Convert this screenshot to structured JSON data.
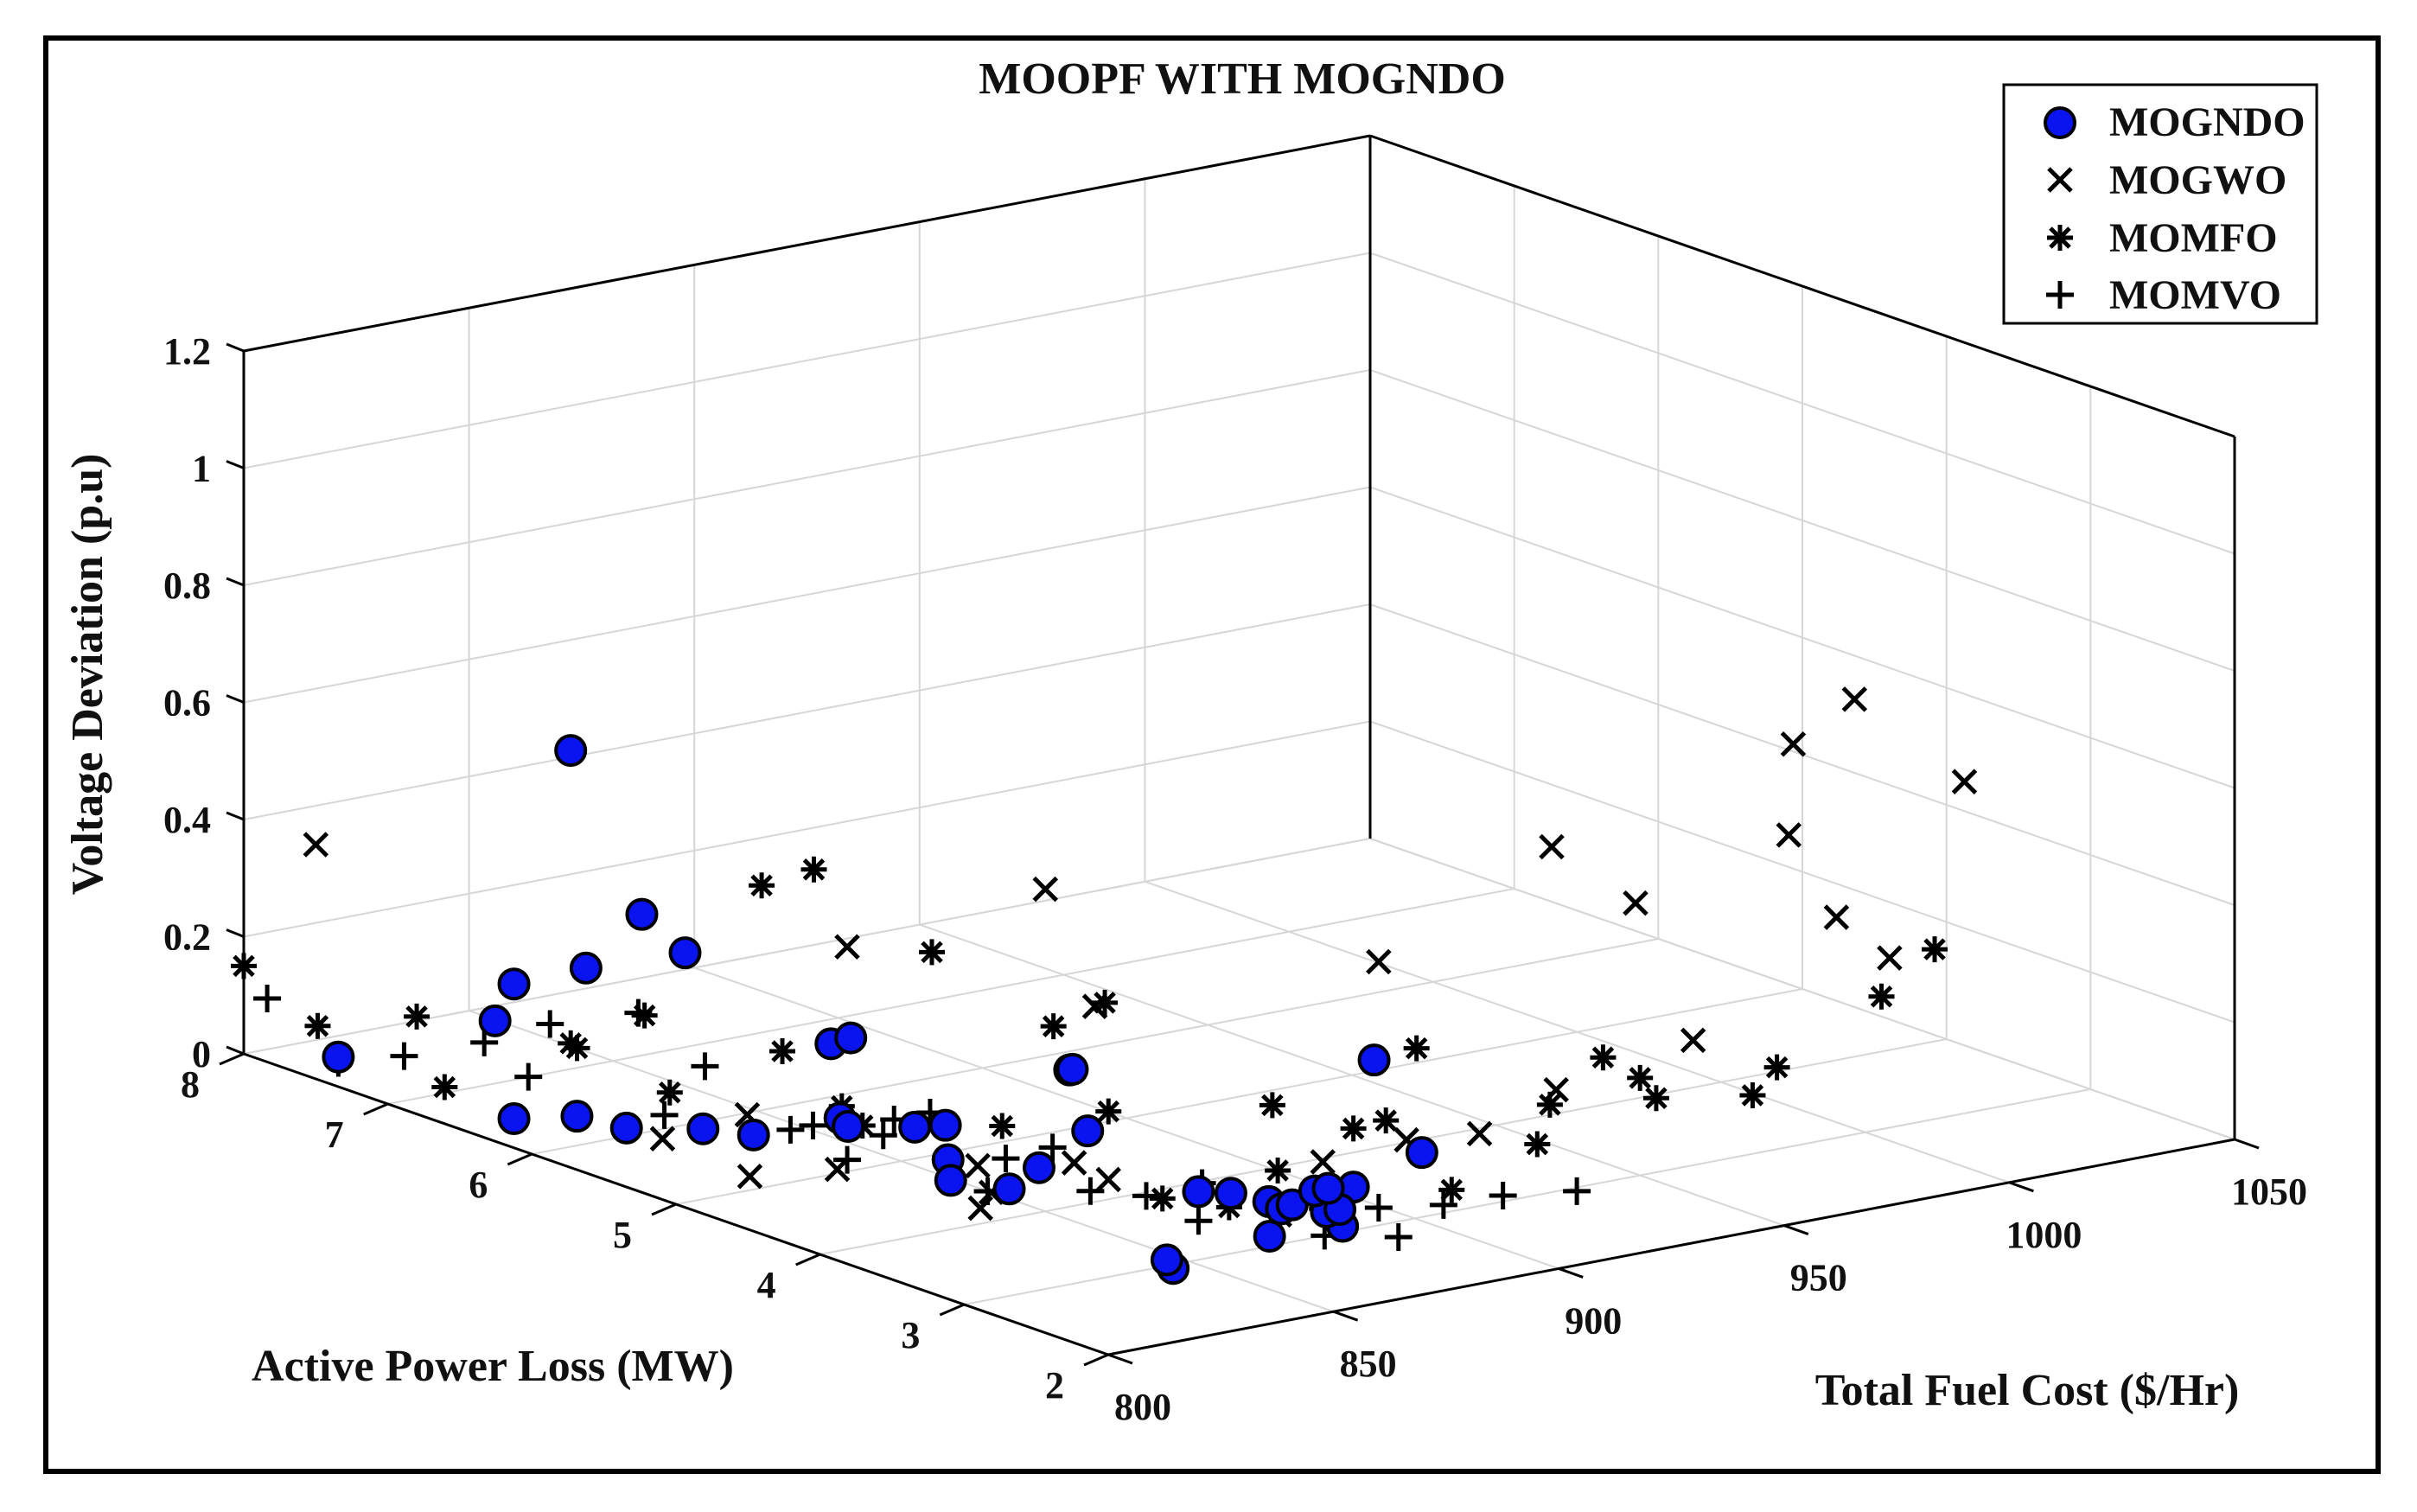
{
  "chart_data": {
    "type": "scatter",
    "projection": "3d",
    "title": "MOOPF WITH MOGNDO",
    "xlabel": "Total Fuel Cost ($/Hr)",
    "ylabel": "Active Power Loss (MW)",
    "zlabel": "Voltage Deviation (p.u)",
    "xlim": [
      800,
      1050
    ],
    "ylim": [
      2,
      8
    ],
    "zlim": [
      0,
      1.2
    ],
    "x_ticks": [
      "800",
      "850",
      "900",
      "950",
      "1000",
      "1050"
    ],
    "y_ticks": [
      "2",
      "3",
      "4",
      "5",
      "6",
      "7",
      "8"
    ],
    "z_ticks": [
      "0",
      "0.2",
      "0.4",
      "0.6",
      "0.8",
      "1",
      "1.2"
    ],
    "grid": true,
    "legend_position": "top-right",
    "series": [
      {
        "name": "MOGNDO",
        "marker": "filled-circle",
        "color": "#0a14f0",
        "points": [
          [
            810,
            6,
            0.05
          ],
          [
            812,
            6,
            0.3
          ],
          [
            815,
            6.2,
            0.65
          ],
          [
            812,
            6.5,
            0.23
          ],
          [
            811,
            6.6,
            0.16
          ],
          [
            818,
            5.5,
            0.36
          ],
          [
            818,
            5.8,
            0.4
          ],
          [
            828,
            4.8,
            0.25
          ],
          [
            826,
            4.6,
            0.28
          ],
          [
            805,
            5.5,
            0.08
          ],
          [
            806,
            5,
            0.12
          ],
          [
            830,
            4.8,
            0.12
          ],
          [
            837,
            4.5,
            0.12
          ],
          [
            847,
            4.6,
            0.1
          ],
          [
            838,
            4.3,
            0.08
          ],
          [
            849,
            3.8,
            0.26
          ],
          [
            840,
            3.5,
            0.3
          ],
          [
            842,
            4,
            0.05
          ],
          [
            853,
            3.8,
            0.15
          ],
          [
            855,
            4.2,
            0.05
          ],
          [
            840,
            2.8,
            0.02
          ],
          [
            845,
            3,
            0.01
          ],
          [
            855,
            2.6,
            0.07
          ],
          [
            875,
            2.5,
            0.35
          ],
          [
            868,
            3.5,
            0.05
          ],
          [
            872,
            3.4,
            0.05
          ],
          [
            874,
            3.2,
            0.05
          ],
          [
            880,
            3.3,
            0.02
          ],
          [
            880,
            2.8,
            0.1
          ],
          [
            892,
            2.7,
            0.15
          ],
          [
            876,
            3.1,
            0.05
          ],
          [
            884,
            3,
            0.01
          ],
          [
            890,
            3.3,
            0.0
          ],
          [
            893,
            3.3,
            0.0
          ],
          [
            897,
            3.6,
            0.0
          ],
          [
            900,
            3.6,
            0.0
          ],
          [
            813,
            3.5,
            0.15
          ],
          [
            835,
            4.9,
            0.09
          ],
          [
            830,
            5.4,
            0.04
          ],
          [
            805,
            7.5,
            0.03
          ],
          [
            812,
            6.5,
            0.0
          ]
        ]
      },
      {
        "name": "MOGWO",
        "marker": "x",
        "color": "#000000",
        "points": [
          [
            800,
            7.5,
            0.4
          ],
          [
            822,
            4.5,
            0.45
          ],
          [
            850,
            4,
            0.55
          ],
          [
            845,
            3.5,
            0.4
          ],
          [
            892,
            3,
            0.45
          ],
          [
            940,
            3.3,
            0.55
          ],
          [
            1000,
            3.5,
            0.62
          ],
          [
            1020,
            3.7,
            0.65
          ],
          [
            1038,
            3.5,
            0.5
          ],
          [
            1015,
            4,
            0.4
          ],
          [
            1015,
            3.3,
            0.25
          ],
          [
            925,
            2.8,
            0.2
          ],
          [
            908,
            2.8,
            0.15
          ],
          [
            895,
            2.9,
            0.15
          ],
          [
            965,
            3.5,
            0.4
          ],
          [
            965,
            3.1,
            0.2
          ],
          [
            1000,
            3.2,
            0.35
          ],
          [
            835,
            4,
            0.1
          ],
          [
            838,
            4,
            0.05
          ],
          [
            848,
            3.5,
            0.1
          ],
          [
            870,
            3,
            0.05
          ],
          [
            886,
            3.2,
            0.1
          ],
          [
            850,
            3.8,
            0.1
          ],
          [
            842,
            4.2,
            0.0
          ],
          [
            823,
            4.6,
            0.06
          ],
          [
            813,
            5.5,
            0.05
          ],
          [
            835,
            5.6,
            0.05
          ],
          [
            810,
            4.8,
            0.05
          ]
        ]
      },
      {
        "name": "MOMFO",
        "marker": "asterisk",
        "color": "#000000",
        "points": [
          [
            800,
            8,
            0.15
          ],
          [
            810,
            7.8,
            0.05
          ],
          [
            816,
            7.3,
            0.1
          ],
          [
            826,
            6.5,
            0.1
          ],
          [
            835,
            5.5,
            0.45
          ],
          [
            837,
            5.2,
            0.5
          ],
          [
            844,
            4.6,
            0.4
          ],
          [
            855,
            4.1,
            0.3
          ],
          [
            860,
            3.9,
            0.35
          ],
          [
            878,
            3.3,
            0.2
          ],
          [
            900,
            3.2,
            0.15
          ],
          [
            910,
            3.3,
            0.25
          ],
          [
            930,
            3,
            0.15
          ],
          [
            945,
            3.1,
            0.2
          ],
          [
            960,
            3.2,
            0.1
          ],
          [
            975,
            3,
            0.1
          ],
          [
            990,
            3.3,
            0.1
          ],
          [
            1010,
            3.2,
            0.2
          ],
          [
            1025,
            3.3,
            0.25
          ],
          [
            880,
            2.8,
            0.2
          ],
          [
            876,
            3.2,
            0.1
          ],
          [
            878,
            3.6,
            0.0
          ],
          [
            905,
            2.9,
            0.05
          ],
          [
            924,
            2.9,
            0.1
          ],
          [
            821,
            5.7,
            0.1
          ],
          [
            835,
            4.8,
            0.1
          ],
          [
            850,
            4.3,
            0.12
          ],
          [
            864,
            4.0,
            0.15
          ],
          [
            803,
            6.7,
            0.05
          ],
          [
            830,
            5.2,
            0.2
          ],
          [
            815,
            6.2,
            0.15
          ],
          [
            825,
            6.0,
            0.2
          ],
          [
            840,
            5.1,
            0.1
          ],
          [
            860,
            3.5,
            0.05
          ],
          [
            966,
            3.5,
            0.1
          ]
        ]
      },
      {
        "name": "MOMVO",
        "marker": "plus",
        "color": "#000000",
        "points": [
          [
            802,
            7.9,
            0.1
          ],
          [
            805,
            7.5,
            0.02
          ],
          [
            810,
            7.2,
            0.05
          ],
          [
            815,
            6.8,
            0.1
          ],
          [
            820,
            6.5,
            0.15
          ],
          [
            830,
            6.2,
            0.18
          ],
          [
            832,
            5.8,
            0.12
          ],
          [
            840,
            5.3,
            0.05
          ],
          [
            846,
            5,
            0.05
          ],
          [
            850,
            4.8,
            0.1
          ],
          [
            854,
            4.4,
            0.05
          ],
          [
            860,
            4,
            0.02
          ],
          [
            866,
            3.8,
            0.02
          ],
          [
            880,
            3.4,
            0.02
          ],
          [
            886,
            3.2,
            0.02
          ],
          [
            892,
            3,
            0.03
          ],
          [
            900,
            2.8,
            0.04
          ],
          [
            910,
            2.7,
            0.05
          ],
          [
            920,
            2.5,
            0.06
          ],
          [
            872,
            3.6,
            0.05
          ],
          [
            858,
            4.2,
            0.08
          ],
          [
            842,
            4.8,
            0.1
          ],
          [
            835,
            5.3,
            0.05
          ],
          [
            823,
            5.8,
            0.05
          ],
          [
            812,
            6.4,
            0.08
          ],
          [
            838,
            5.0,
            0.02
          ],
          [
            850,
            4.4,
            0.0
          ],
          [
            868,
            3.5,
            0.0
          ],
          [
            880,
            3.0,
            0.0
          ],
          [
            890,
            2.8,
            0.0
          ]
        ]
      }
    ]
  }
}
